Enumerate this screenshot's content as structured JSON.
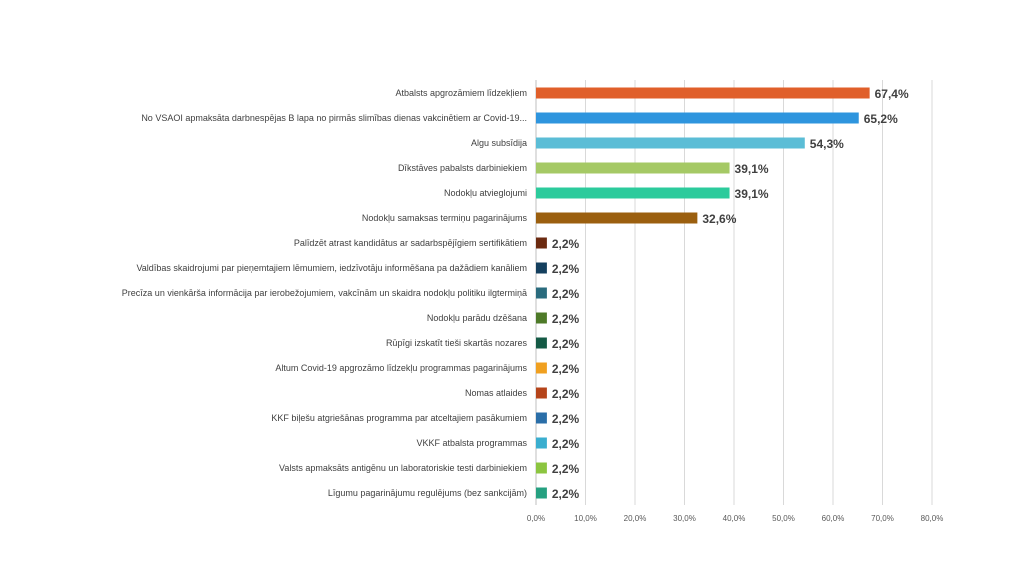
{
  "chart_data": {
    "type": "bar",
    "orientation": "horizontal",
    "title": "",
    "xlabel": "",
    "ylabel": "",
    "xlim": [
      0,
      80
    ],
    "grid": true,
    "categories": [
      "Atbalsts apgrozāmiem līdzekļiem",
      "No VSAOI apmaksāta darbnespējas B lapa no pirmās slimības dienas vakcinētiem ar Covid-19...",
      "Algu subsīdija",
      "Dīkstāves pabalsts darbiniekiem",
      "Nodokļu atvieglojumi",
      "Nodokļu samaksas termiņu pagarinājums",
      "Palīdzēt atrast kandidātus ar sadarbspējīgiem sertifikātiem",
      "Valdības skaidrojumi par pieņemtajiem lēmumiem, iedzīvotāju informēšana pa dažādiem kanāliem",
      "Precīza un vienkārša informācija par ierobežojumiem, vakcīnām un skaidra nodokļu politiku ilgtermiņā",
      "Nodokļu parādu dzēšana",
      "Rūpīgi izskatīt tieši skartās nozares",
      "Altum Covid-19 apgrozāmo līdzekļu programmas pagarinājums",
      "Nomas atlaides",
      "KKF biļešu atgriešānas programma par atceltajiem pasākumiem",
      "VKKF atbalsta programmas",
      "Valsts apmaksāts antigēnu un laboratoriskie testi darbiniekiem",
      "Līgumu pagarinājumu regulējums (bez sankcijām)"
    ],
    "values": [
      67.4,
      65.2,
      54.3,
      39.1,
      39.1,
      32.6,
      2.2,
      2.2,
      2.2,
      2.2,
      2.2,
      2.2,
      2.2,
      2.2,
      2.2,
      2.2,
      2.2
    ],
    "value_labels": [
      "67,4%",
      "65,2%",
      "54,3%",
      "39,1%",
      "39,1%",
      "32,6%",
      "2,2%",
      "2,2%",
      "2,2%",
      "2,2%",
      "2,2%",
      "2,2%",
      "2,2%",
      "2,2%",
      "2,2%",
      "2,2%",
      "2,2%"
    ],
    "colors": [
      "#E05F2A",
      "#2E95DE",
      "#5BBDD6",
      "#A5C965",
      "#2CCB9C",
      "#9B5F0F",
      "#6B2A10",
      "#143F5E",
      "#2A6B7D",
      "#4E7A28",
      "#145A45",
      "#F0A020",
      "#B5441A",
      "#2A6EA8",
      "#3AAECF",
      "#8CC540",
      "#25A080"
    ],
    "ticks": [
      0,
      10,
      20,
      30,
      40,
      50,
      60,
      70,
      80
    ],
    "tick_labels": [
      "0,0%",
      "10,0%",
      "20,0%",
      "30,0%",
      "40,0%",
      "50,0%",
      "60,0%",
      "70,0%",
      "80,0%"
    ]
  }
}
